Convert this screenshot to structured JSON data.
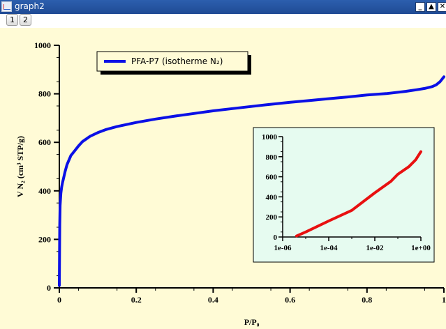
{
  "window": {
    "title": "graph2",
    "tabs": [
      "1",
      "2"
    ],
    "controls": [
      "minimize-icon",
      "maximize-icon",
      "close-icon"
    ]
  },
  "colors": {
    "plot_bg": "#fffbd6",
    "inset_bg": "#e6fbf0",
    "main_series": "#0b10e6",
    "inset_series": "#e81010",
    "titlebar": "#2a5aa8"
  },
  "chart_data": [
    {
      "type": "line",
      "title": "",
      "xlabel": "P/P₀",
      "ylabel": "V N₂ (cm³ STP/g)",
      "xlim": [
        0,
        1
      ],
      "ylim": [
        0,
        1000
      ],
      "x_ticks": [
        "0",
        "0.2",
        "0.4",
        "0.6",
        "0.8",
        "1"
      ],
      "y_ticks": [
        "0",
        "200",
        "400",
        "600",
        "800",
        "1000"
      ],
      "legend": {
        "placement": "top-left",
        "entries": [
          "PFA-P7 (isotherme N₂)"
        ]
      },
      "series": [
        {
          "name": "PFA-P7 (isotherme N₂)",
          "x": [
            0.0,
            0.0005,
            0.001,
            0.002,
            0.004,
            0.006,
            0.008,
            0.01,
            0.015,
            0.02,
            0.03,
            0.04,
            0.05,
            0.06,
            0.08,
            0.1,
            0.12,
            0.15,
            0.2,
            0.25,
            0.3,
            0.35,
            0.4,
            0.45,
            0.5,
            0.55,
            0.6,
            0.65,
            0.7,
            0.75,
            0.8,
            0.85,
            0.9,
            0.93,
            0.95,
            0.97,
            0.98,
            0.99,
            1.0
          ],
          "y": [
            10,
            140,
            260,
            340,
            390,
            415,
            432,
            445,
            480,
            508,
            545,
            565,
            585,
            603,
            625,
            640,
            652,
            665,
            682,
            696,
            708,
            719,
            730,
            739,
            748,
            757,
            765,
            772,
            780,
            787,
            795,
            801,
            810,
            817,
            822,
            830,
            837,
            850,
            870
          ]
        }
      ]
    },
    {
      "type": "line",
      "title": "",
      "xscale": "log",
      "xlim": [
        1e-06,
        1
      ],
      "ylim": [
        0,
        1000
      ],
      "x_ticks": [
        "1e-06",
        "1e-04",
        "1e-02",
        "1e+00"
      ],
      "y_ticks": [
        "0",
        "200",
        "400",
        "600",
        "800",
        "1000"
      ],
      "series": [
        {
          "x": [
            4e-06,
            1e-05,
            0.0001,
            0.001,
            0.01,
            0.05,
            0.1,
            0.3,
            0.6,
            1.0
          ],
          "y": [
            10,
            50,
            160,
            265,
            440,
            555,
            625,
            700,
            770,
            850
          ]
        }
      ]
    }
  ]
}
